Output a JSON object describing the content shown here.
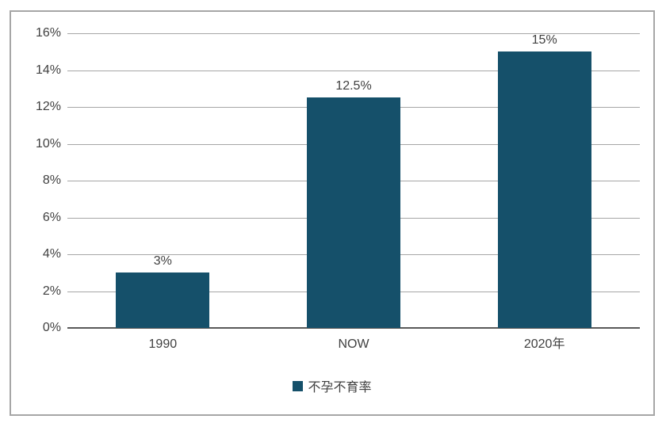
{
  "chart_data": {
    "type": "bar",
    "categories": [
      "1990",
      "NOW",
      "2020年"
    ],
    "values": [
      3,
      12.5,
      15
    ],
    "data_labels": [
      "3%",
      "12.5%",
      "15%"
    ],
    "series": [
      {
        "name": "不孕不育率",
        "values": [
          3,
          12.5,
          15
        ]
      }
    ],
    "title": "",
    "xlabel": "",
    "ylabel": "",
    "ylim": [
      0,
      16
    ],
    "ytick_step": 2,
    "ytick_labels": [
      "0%",
      "2%",
      "4%",
      "6%",
      "8%",
      "10%",
      "12%",
      "14%",
      "16%"
    ],
    "grid": true,
    "legend": {
      "position": "bottom",
      "label": "不孕不育率"
    },
    "colors": {
      "bar": "#15506a",
      "gridline": "#a6a6a6",
      "axis_line": "#595959",
      "frame_border": "#a6a6a6",
      "text": "#404040",
      "background": "#ffffff"
    }
  }
}
